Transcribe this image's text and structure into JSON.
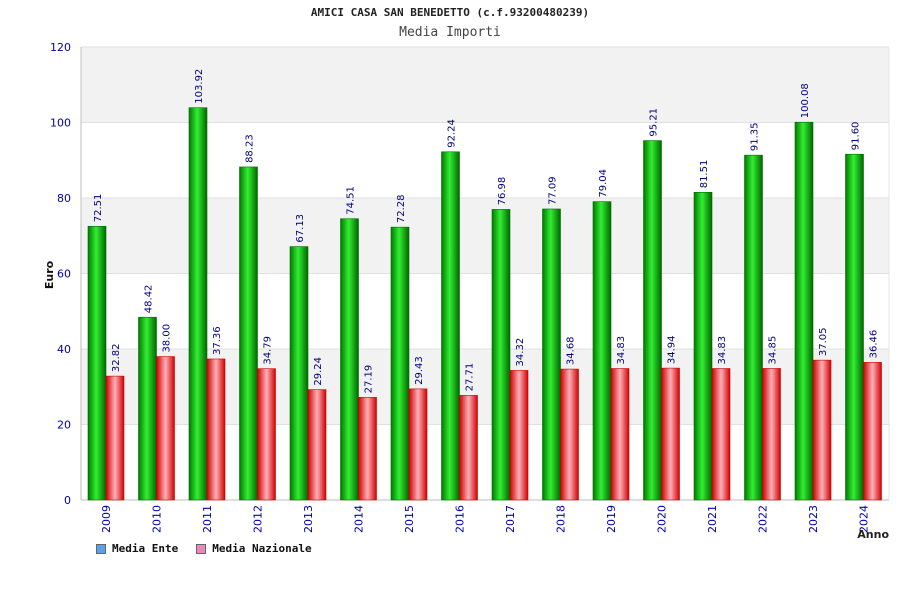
{
  "chart_data": {
    "type": "bar",
    "title": "AMICI CASA SAN BENEDETTO (c.f.93200480239)",
    "subtitle": "Media Importi",
    "xlabel": "Anno",
    "ylabel": "Euro",
    "ylim": [
      0,
      120
    ],
    "yticks": [
      0,
      20,
      40,
      60,
      80,
      100,
      120
    ],
    "categories": [
      "2009",
      "2010",
      "2011",
      "2012",
      "2013",
      "2014",
      "2015",
      "2016",
      "2017",
      "2018",
      "2019",
      "2020",
      "2021",
      "2022",
      "2023",
      "2024"
    ],
    "series": [
      {
        "name": "Media Ente",
        "color": "#00b000",
        "legend_color": "#5aa0e8",
        "values": [
          72.51,
          48.42,
          103.92,
          88.23,
          67.13,
          74.51,
          72.28,
          92.24,
          76.98,
          77.09,
          79.04,
          95.21,
          81.51,
          91.35,
          100.08,
          91.6
        ],
        "labels": [
          "72.51",
          "48.42",
          "103.92",
          "88.23",
          "67.13",
          "74.51",
          "72.28",
          "92.24",
          "76.98",
          "77.09",
          "79.04",
          "95.21",
          "81.51",
          "91.35",
          "100.08",
          "91.60"
        ]
      },
      {
        "name": "Media Nazionale",
        "color": "#e01010",
        "legend_color": "#e888b8",
        "values": [
          32.82,
          38.0,
          37.36,
          34.79,
          29.24,
          27.19,
          29.43,
          27.71,
          34.32,
          34.68,
          34.83,
          34.94,
          34.83,
          34.85,
          37.05,
          36.46
        ],
        "labels": [
          "32.82",
          "38.00",
          "37.36",
          "34.79",
          "29.24",
          "27.19",
          "29.43",
          "27.71",
          "34.32",
          "34.68",
          "34.83",
          "34.94",
          "34.83",
          "34.85",
          "37.05",
          "36.46"
        ]
      }
    ],
    "grid": true,
    "legend_position": "bottom-left"
  }
}
